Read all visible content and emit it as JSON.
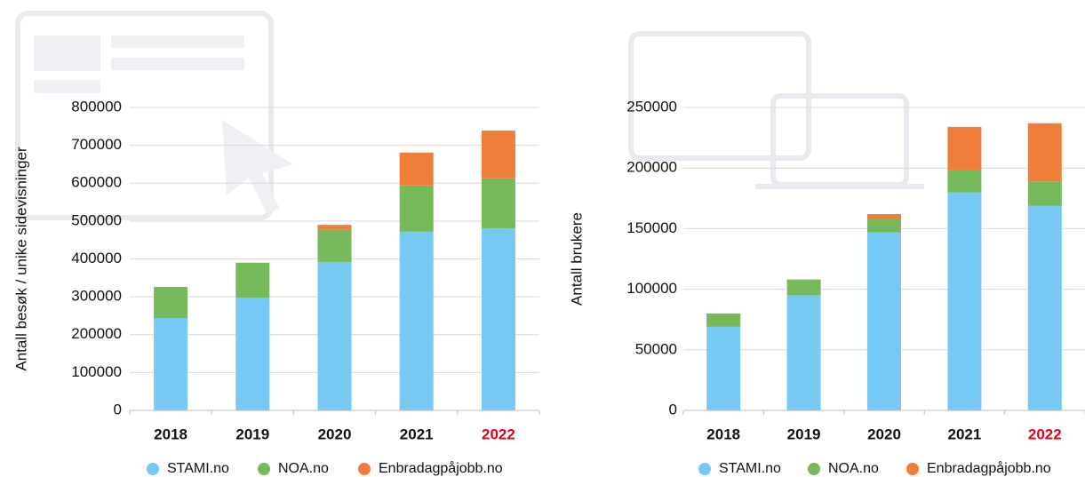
{
  "chart_data": [
    {
      "type": "bar",
      "stacked": true,
      "y_label": "Antall besøk / unike sidevisninger",
      "categories": [
        "2018",
        "2019",
        "2020",
        "2021",
        "2022"
      ],
      "category_colors": [
        "#111111",
        "#111111",
        "#111111",
        "#111111",
        "#e3001b"
      ],
      "series": [
        {
          "name": "STAMI.no",
          "color": "#77c8f2",
          "values": [
            244000,
            298000,
            392000,
            472000,
            481000
          ]
        },
        {
          "name": "NOA.no",
          "color": "#76b85a",
          "values": [
            82000,
            92000,
            85000,
            122000,
            132000
          ]
        },
        {
          "name": "Enbradagpåjobb.no",
          "color": "#ef7e3a",
          "values": [
            0,
            0,
            13000,
            87000,
            126000
          ]
        }
      ],
      "ylim": [
        0,
        800000
      ],
      "yticks": [
        0,
        100000,
        200000,
        300000,
        400000,
        500000,
        600000,
        700000,
        800000
      ],
      "grid": true
    },
    {
      "type": "bar",
      "stacked": true,
      "y_label": "Antall brukere",
      "categories": [
        "2018",
        "2019",
        "2020",
        "2021",
        "2022"
      ],
      "category_colors": [
        "#111111",
        "#111111",
        "#111111",
        "#111111",
        "#e3001b"
      ],
      "series": [
        {
          "name": "STAMI.no",
          "color": "#77c8f2",
          "values": [
            69000,
            95000,
            147000,
            180000,
            169000
          ]
        },
        {
          "name": "NOA.no",
          "color": "#76b85a",
          "values": [
            11000,
            13000,
            11000,
            18000,
            20000
          ]
        },
        {
          "name": "Enbradagpåjobb.no",
          "color": "#ef7e3a",
          "values": [
            0,
            0,
            4000,
            36000,
            48000
          ]
        }
      ],
      "ylim": [
        0,
        250000
      ],
      "yticks": [
        0,
        50000,
        100000,
        150000,
        200000,
        250000
      ],
      "grid": true
    }
  ]
}
